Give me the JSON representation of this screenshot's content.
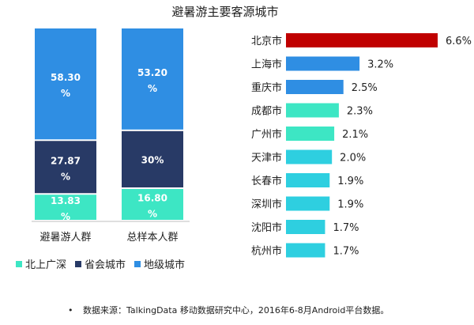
{
  "chart_data": [
    {
      "type": "bar",
      "stacked": true,
      "title": "避暑游主要客源城市",
      "categories": [
        "避暑游人群",
        "总样本人群"
      ],
      "ylim": [
        0,
        100
      ],
      "series": [
        {
          "name": "北上广深",
          "color": "#3de6c4",
          "values": [
            13.83,
            16.8
          ],
          "labels": [
            "13.83\n%",
            "16.80\n%"
          ]
        },
        {
          "name": "省会城市",
          "color": "#283a66",
          "values": [
            27.87,
            30.0
          ],
          "labels": [
            "27.87\n%",
            "30%"
          ]
        },
        {
          "name": "地级城市",
          "color": "#2f8ee3",
          "values": [
            58.3,
            53.2
          ],
          "labels": [
            "58.30\n%",
            "53.20\n%"
          ]
        }
      ],
      "legend": "bottom"
    },
    {
      "type": "bar",
      "orientation": "horizontal",
      "categories": [
        "北京市",
        "上海市",
        "重庆市",
        "成都市",
        "广州市",
        "天津市",
        "长春市",
        "深圳市",
        "沈阳市",
        "杭州市"
      ],
      "values": [
        6.6,
        3.2,
        2.5,
        2.3,
        2.1,
        2.0,
        1.9,
        1.9,
        1.7,
        1.7
      ],
      "value_labels": [
        "6.6%",
        "3.2%",
        "2.5%",
        "2.3%",
        "2.1%",
        "2.0%",
        "1.9%",
        "1.9%",
        "1.7%",
        "1.7%"
      ],
      "colors": [
        "#c00000",
        "#2f8ee3",
        "#2f8ee3",
        "#3de6c4",
        "#3de6c4",
        "#2ecfe0",
        "#2ecfe0",
        "#2ecfe0",
        "#2ecfe0",
        "#2ecfe0"
      ],
      "xlim": [
        0,
        6.6
      ]
    }
  ],
  "footer": {
    "bullet": "•",
    "source": "数据来源：TalkingData 移动数据研究中心，2016年6-8月Android平台数据。"
  }
}
